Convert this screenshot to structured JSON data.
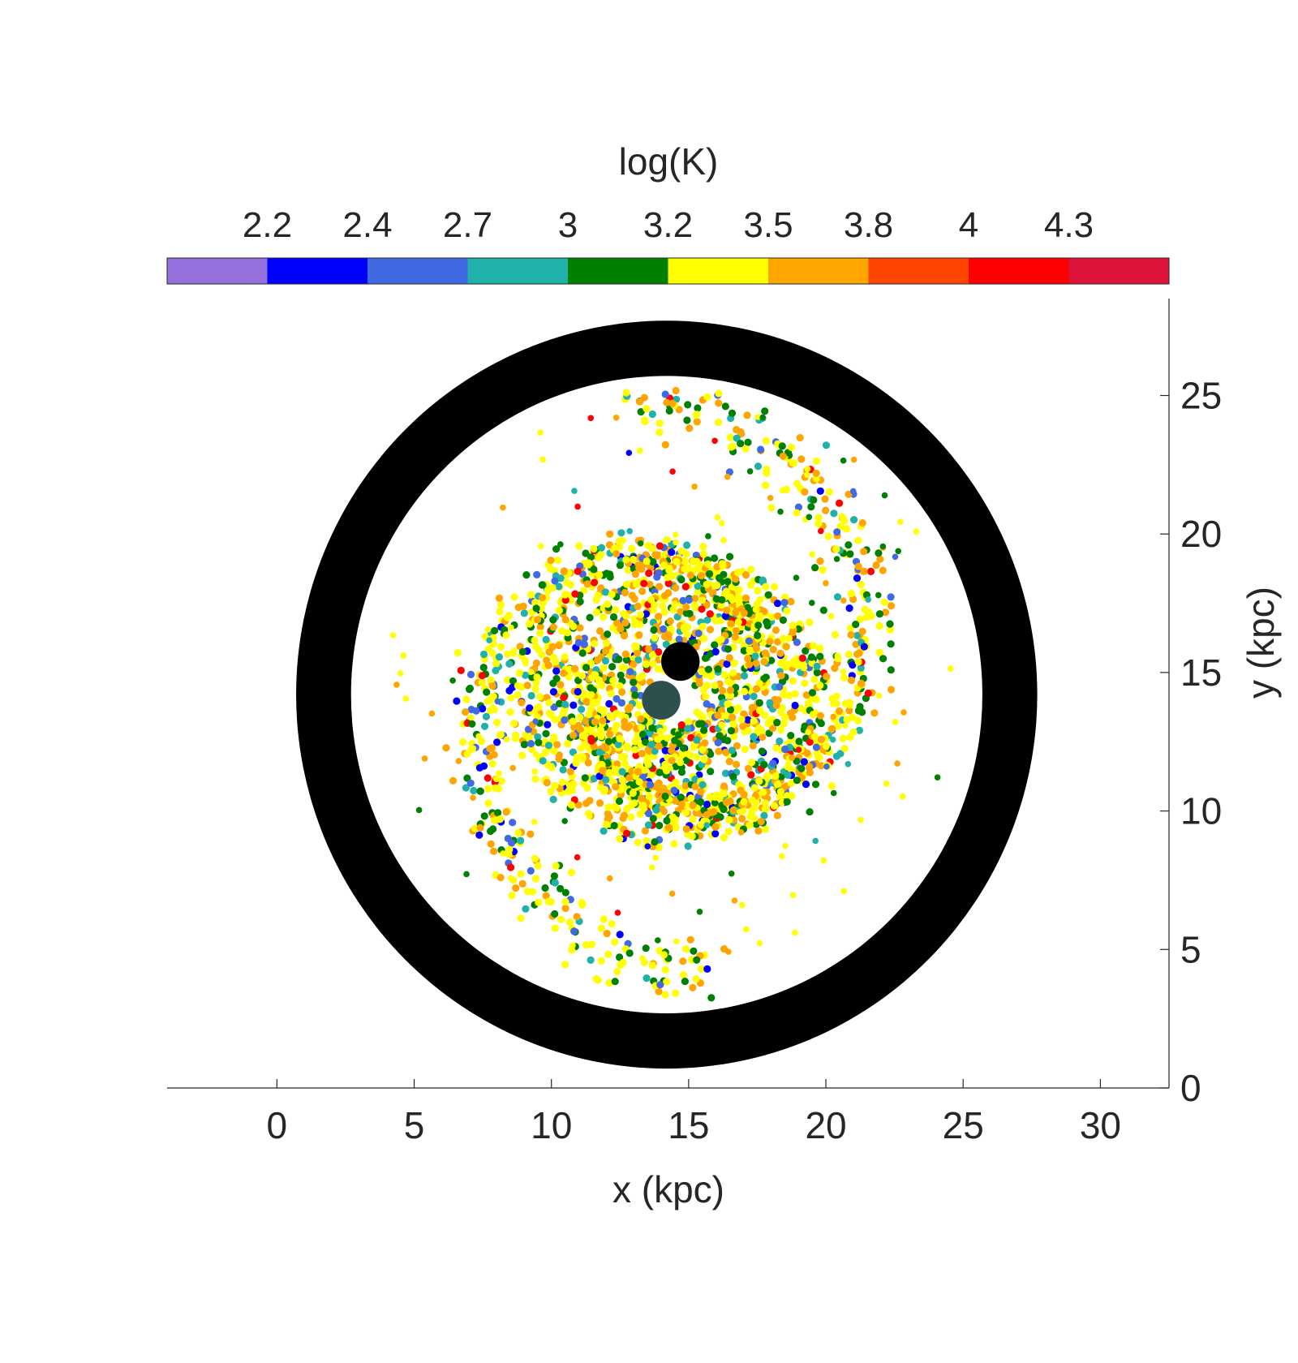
{
  "chart_data": {
    "type": "scatter",
    "title": "",
    "xlabel": "x (kpc)",
    "ylabel": "y (kpc)",
    "xlim": [
      -4,
      32.5
    ],
    "ylim": [
      0,
      28.5
    ],
    "xticks": [
      0,
      5,
      10,
      15,
      20,
      25,
      30
    ],
    "yticks": [
      0,
      5,
      10,
      15,
      20,
      25
    ],
    "y_axis_side": "right",
    "grid": false,
    "colorbar": {
      "label": "log(K)",
      "position": "top",
      "tick_labels": [
        "2.2",
        "2.4",
        "2.7",
        "3",
        "3.2",
        "3.5",
        "3.8",
        "4",
        "4.3"
      ],
      "colors": [
        "#9370DB",
        "#0000FF",
        "#4169E1",
        "#20B2AA",
        "#008000",
        "#FFFF00",
        "#FFA500",
        "#FF4500",
        "#FF0000",
        "#DC143C"
      ]
    },
    "outer_ring": {
      "center": [
        14.2,
        14.2
      ],
      "inner_radius": 11.5,
      "outer_radius": 13.5,
      "color": "#000000"
    },
    "core_markers": [
      {
        "x": 14.7,
        "y": 15.4,
        "radius": 0.7,
        "color": "#000000"
      },
      {
        "x": 14.0,
        "y": 14.0,
        "radius": 0.7,
        "color": "#2F4F4F"
      }
    ],
    "spiral_arms": [
      {
        "a": 3.2,
        "pitch_deg": 15,
        "theta_start_deg": 20,
        "theta_span_deg": 420
      },
      {
        "a": 3.2,
        "pitch_deg": 15,
        "theta_start_deg": 200,
        "theta_span_deg": 420
      }
    ],
    "point_groups": [
      {
        "class_index": 5,
        "share": 0.42
      },
      {
        "class_index": 6,
        "share": 0.24
      },
      {
        "class_index": 4,
        "share": 0.17
      },
      {
        "class_index": 3,
        "share": 0.07
      },
      {
        "class_index": 2,
        "share": 0.04
      },
      {
        "class_index": 8,
        "share": 0.03
      },
      {
        "class_index": 1,
        "share": 0.03
      }
    ]
  }
}
